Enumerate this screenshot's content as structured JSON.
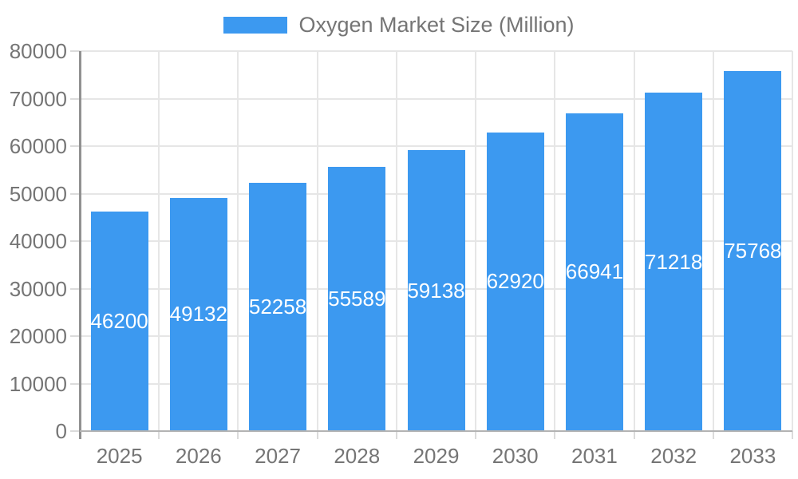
{
  "chart_data": {
    "type": "bar",
    "title": "Oxygen Market Size (Million)",
    "legend": {
      "position": "top-center",
      "entries": [
        "Oxygen Market Size (Million)"
      ]
    },
    "categories": [
      "2025",
      "2026",
      "2027",
      "2028",
      "2029",
      "2030",
      "2031",
      "2032",
      "2033"
    ],
    "series": [
      {
        "name": "Oxygen Market Size (Million)",
        "values": [
          46200,
          49132,
          52258,
          55589,
          59138,
          62920,
          66941,
          71218,
          75768
        ]
      }
    ],
    "xlabel": "",
    "ylabel": "",
    "ylim": [
      0,
      80000
    ],
    "ytick_interval": 10000,
    "ytick_labels": [
      "0",
      "10000",
      "20000",
      "30000",
      "40000",
      "50000",
      "60000",
      "70000",
      "80000"
    ],
    "grid": true,
    "value_labels": {
      "position": "inside-center",
      "color": "#FFFFFF"
    },
    "colors": {
      "bar": "#3C99F0",
      "gridline": "#E6E6E6",
      "tick": "#DBDBDB",
      "x_axis_line": "#B3B3B3",
      "y_axis_line": "#919191",
      "axis_text": "#757575",
      "value_label_text": "#FFFFFF",
      "background": "#FFFFFF"
    }
  }
}
